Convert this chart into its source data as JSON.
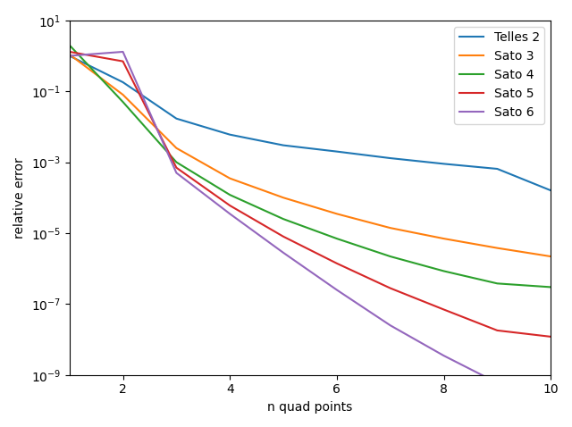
{
  "xlabel": "n quad points",
  "ylabel": "relative error",
  "series": [
    {
      "label": "Telles 2",
      "color": "#1f77b4",
      "x": [
        1,
        2,
        3,
        4,
        5,
        6,
        7,
        8,
        9,
        10
      ],
      "y": [
        1.0,
        0.18,
        0.017,
        0.006,
        0.003,
        0.002,
        0.0013,
        0.0009,
        0.00065,
        0.00016
      ]
    },
    {
      "label": "Sato 3",
      "color": "#ff7f0e",
      "x": [
        1,
        2,
        3,
        4,
        5,
        6,
        7,
        8,
        9,
        10
      ],
      "y": [
        1.1,
        0.08,
        0.0025,
        0.00035,
        0.0001,
        3.5e-05,
        1.4e-05,
        7e-06,
        3.8e-06,
        2.2e-06
      ]
    },
    {
      "label": "Sato 4",
      "color": "#2ca02c",
      "x": [
        1,
        2,
        3,
        4,
        5,
        6,
        7,
        8,
        9,
        10
      ],
      "y": [
        2.0,
        0.05,
        0.001,
        0.00012,
        2.5e-05,
        7e-06,
        2.2e-06,
        8.5e-07,
        3.8e-07,
        3e-07
      ]
    },
    {
      "label": "Sato 5",
      "color": "#d62728",
      "x": [
        1,
        2,
        3,
        4,
        5,
        6,
        7,
        8,
        9,
        10
      ],
      "y": [
        1.3,
        0.7,
        0.0007,
        6e-05,
        8e-06,
        1.4e-06,
        2.8e-07,
        7e-08,
        1.8e-08,
        1.2e-08
      ]
    },
    {
      "label": "Sato 6",
      "color": "#9467bd",
      "x": [
        1,
        2,
        3,
        4,
        5,
        6,
        7,
        8,
        9,
        10
      ],
      "y": [
        1.0,
        1.3,
        0.0005,
        3.5e-05,
        2.8e-06,
        2.5e-07,
        2.5e-08,
        3.5e-09,
        6e-10,
        3e-10
      ]
    }
  ],
  "xlim": [
    1,
    10
  ],
  "ylim": [
    1e-09,
    10
  ],
  "figsize": [
    6.4,
    4.78
  ],
  "dpi": 100,
  "xticks": [
    2,
    4,
    6,
    8,
    10
  ]
}
